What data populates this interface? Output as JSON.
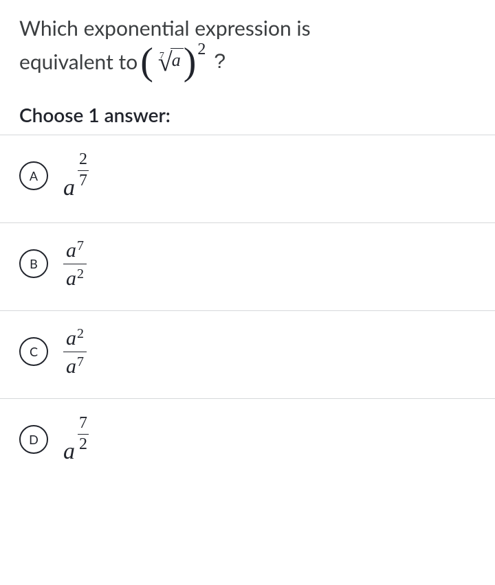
{
  "question": {
    "line1": "Which exponential expression is",
    "line2_prefix": "equivalent to",
    "root_index": "7",
    "radicand": "a",
    "outer_exponent": "2",
    "qmark": "?"
  },
  "prompt": "Choose 1 answer:",
  "choices": {
    "A": {
      "letter": "A",
      "base": "a",
      "exp_num": "2",
      "exp_den": "7"
    },
    "B": {
      "letter": "B",
      "num_base": "a",
      "num_exp": "7",
      "den_base": "a",
      "den_exp": "2"
    },
    "C": {
      "letter": "C",
      "num_base": "a",
      "num_exp": "2",
      "den_base": "a",
      "den_exp": "7"
    },
    "D": {
      "letter": "D",
      "base": "a",
      "exp_num": "7",
      "exp_den": "2"
    }
  },
  "colors": {
    "text": "#21242c",
    "question_text": "#3b3e40",
    "divider": "#d6d8da",
    "background": "#ffffff"
  }
}
